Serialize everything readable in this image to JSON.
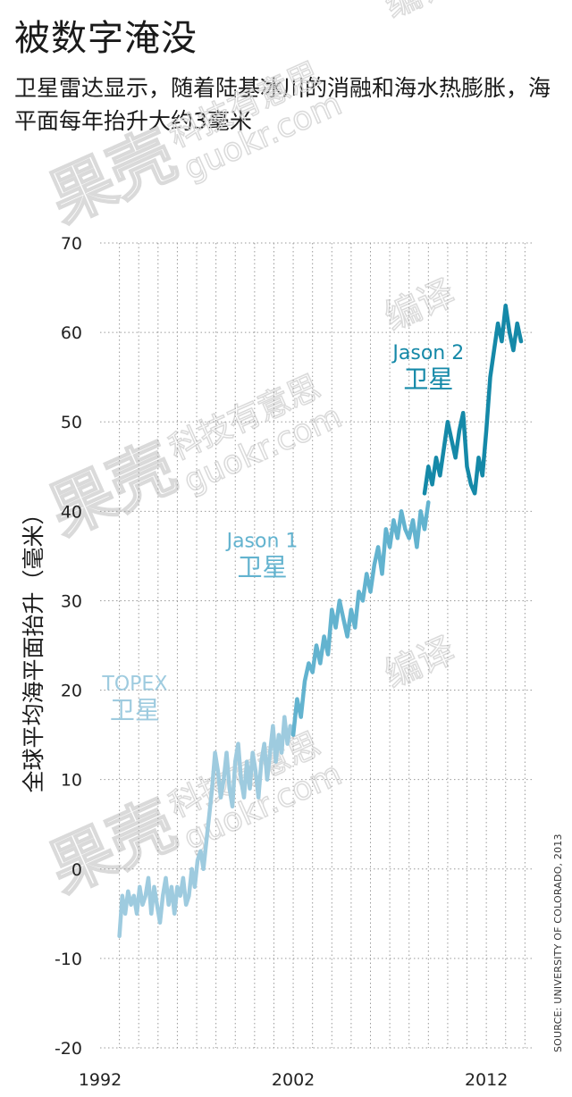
{
  "header": {
    "title": "被数字淹没",
    "subtitle": "卫星雷达显示，随着陆基冰川的消融和海水热膨胀，海平面每年抬升大约3毫米"
  },
  "source_note": "SOURCE: UNIVERSITY OF COLORADO, 2013",
  "colors": {
    "topex": "#9ecbdf",
    "jason1": "#63b3cf",
    "jason2": "#1589a8",
    "grid": "#9a9a9a",
    "watermark": "#d6d6d6"
  },
  "watermark_text": [
    "果壳",
    "科技有意思",
    "guokr.com",
    "编译"
  ],
  "chart_data": {
    "type": "line",
    "title": "被数字淹没",
    "ylabel": "全球平均海平面抬升（毫米）",
    "xlabel": "",
    "xlim": [
      1992.0,
      2014.4
    ],
    "ylim": [
      -20,
      70
    ],
    "x_ticks": [
      1992,
      2002,
      2012
    ],
    "y_ticks": [
      70,
      60,
      50,
      40,
      30,
      20,
      10,
      0,
      -10,
      -20
    ],
    "grid": true,
    "annotations": [
      {
        "series": "topex",
        "lines": [
          "TOPEX",
          "卫星"
        ]
      },
      {
        "series": "jason1",
        "lines": [
          "Jason 1",
          "卫星"
        ]
      },
      {
        "series": "jason2",
        "lines": [
          "Jason 2",
          "卫星"
        ]
      }
    ],
    "series": [
      {
        "name": "TOPEX",
        "key": "topex",
        "x": [
          1993.0,
          1993.15,
          1993.3,
          1993.45,
          1993.6,
          1993.75,
          1993.9,
          1994.05,
          1994.2,
          1994.35,
          1994.5,
          1994.65,
          1994.8,
          1994.95,
          1995.1,
          1995.25,
          1995.4,
          1995.55,
          1995.7,
          1995.85,
          1996.0,
          1996.15,
          1996.3,
          1996.45,
          1996.6,
          1996.75,
          1996.9,
          1997.05,
          1997.2,
          1997.35,
          1997.5,
          1997.65,
          1997.8,
          1997.95,
          1998.1,
          1998.25,
          1998.4,
          1998.55,
          1998.7,
          1998.85,
          1999.0,
          1999.15,
          1999.3,
          1999.45,
          1999.6,
          1999.75,
          1999.9,
          2000.05,
          2000.2,
          2000.35,
          2000.5,
          2000.65,
          2000.8,
          2000.95,
          2001.1,
          2001.25,
          2001.4,
          2001.55,
          2001.7,
          2001.85,
          2002.0
        ],
        "values": [
          -7.5,
          -3,
          -5,
          -2.5,
          -4,
          -3,
          -5,
          -2,
          -4,
          -3,
          -1,
          -5,
          -2,
          -4,
          -6,
          -3,
          -1,
          -4,
          -2,
          -5,
          -2,
          -3,
          -1,
          -4,
          -3,
          0,
          -2,
          1,
          2,
          0,
          3,
          6,
          9,
          13,
          11,
          8,
          10,
          13,
          9,
          7,
          12,
          14,
          10,
          8,
          12,
          9,
          13,
          11,
          8,
          12,
          14,
          10,
          13,
          16,
          12,
          15,
          13,
          17,
          14,
          16,
          15
        ]
      },
      {
        "name": "Jason 1",
        "key": "jason1",
        "x": [
          2002.0,
          2002.2,
          2002.4,
          2002.6,
          2002.8,
          2003.0,
          2003.2,
          2003.4,
          2003.6,
          2003.8,
          2004.0,
          2004.2,
          2004.4,
          2004.6,
          2004.8,
          2005.0,
          2005.2,
          2005.4,
          2005.6,
          2005.8,
          2006.0,
          2006.2,
          2006.4,
          2006.6,
          2006.8,
          2007.0,
          2007.2,
          2007.4,
          2007.6,
          2007.8,
          2008.0,
          2008.2,
          2008.4,
          2008.6,
          2008.8,
          2009.0
        ],
        "values": [
          15,
          19,
          17,
          21,
          23,
          22,
          25,
          23,
          26,
          24,
          29,
          27,
          30,
          28,
          26,
          29,
          27,
          31,
          30,
          33,
          31,
          34,
          36,
          33,
          38,
          36,
          39,
          37,
          40,
          38,
          37,
          39,
          36,
          40,
          38,
          41
        ]
      },
      {
        "name": "Jason 2",
        "key": "jason2",
        "x": [
          2008.8,
          2009.0,
          2009.2,
          2009.4,
          2009.6,
          2009.8,
          2010.0,
          2010.2,
          2010.4,
          2010.6,
          2010.8,
          2011.0,
          2011.2,
          2011.4,
          2011.6,
          2011.8,
          2012.0,
          2012.2,
          2012.4,
          2012.6,
          2012.8,
          2013.0,
          2013.2,
          2013.4,
          2013.6,
          2013.8
        ],
        "values": [
          42,
          45,
          43,
          46,
          44,
          47,
          50,
          48,
          46,
          49,
          51,
          45,
          43,
          42,
          46,
          44,
          49,
          55,
          58,
          61,
          59,
          63,
          60,
          58,
          61,
          59
        ]
      }
    ]
  }
}
